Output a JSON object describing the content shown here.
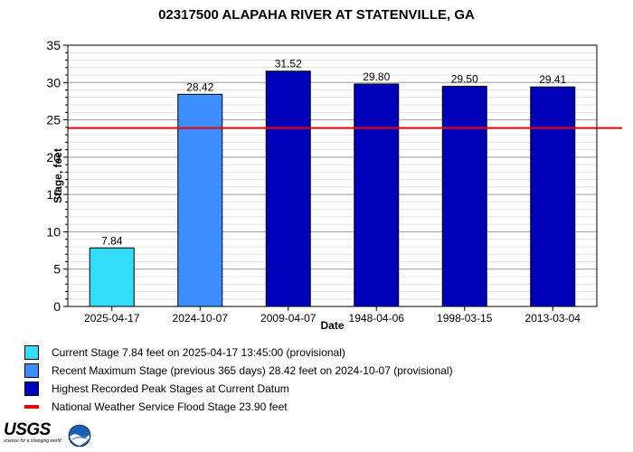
{
  "chart_data": {
    "type": "bar",
    "title": "02317500 ALAPAHA RIVER AT STATENVILLE, GA",
    "xlabel": "Date",
    "ylabel": "Stage, feet",
    "ylim": [
      0,
      35
    ],
    "yticks": [
      0,
      5,
      10,
      15,
      20,
      25,
      30,
      35
    ],
    "categories": [
      "2025-04-17",
      "2024-10-07",
      "2009-04-07",
      "1948-04-06",
      "1998-03-15",
      "2013-03-04"
    ],
    "values": [
      7.84,
      28.42,
      31.52,
      29.8,
      29.5,
      29.41
    ],
    "value_labels": [
      "7.84",
      "28.42",
      "31.52",
      "29.80",
      "29.50",
      "29.41"
    ],
    "bar_colors": [
      "#33ddf7",
      "#3d8fff",
      "#0000bb",
      "#0000bb",
      "#0000bb",
      "#0000bb"
    ],
    "flood_stage": 23.9,
    "flood_stage_color": "#ee0000",
    "grid": true,
    "legend_position": "bottom"
  },
  "legend": [
    {
      "kind": "box",
      "color": "#33ddf7",
      "label": "Current Stage 7.84 feet on 2025-04-17 13:45:00 (provisional)"
    },
    {
      "kind": "box",
      "color": "#3d8fff",
      "label": "Recent Maximum Stage (previous 365 days) 28.42 feet on 2024-10-07 (provisional)"
    },
    {
      "kind": "box",
      "color": "#0000bb",
      "label": "Highest Recorded Peak Stages at Current Datum"
    },
    {
      "kind": "line",
      "color": "#ee0000",
      "label": "National Weather Service Flood Stage 23.90 feet"
    }
  ],
  "logos": {
    "usgs_text": "USGS",
    "usgs_tagline": "science for a changing world",
    "noaa_text": "NOAA"
  }
}
